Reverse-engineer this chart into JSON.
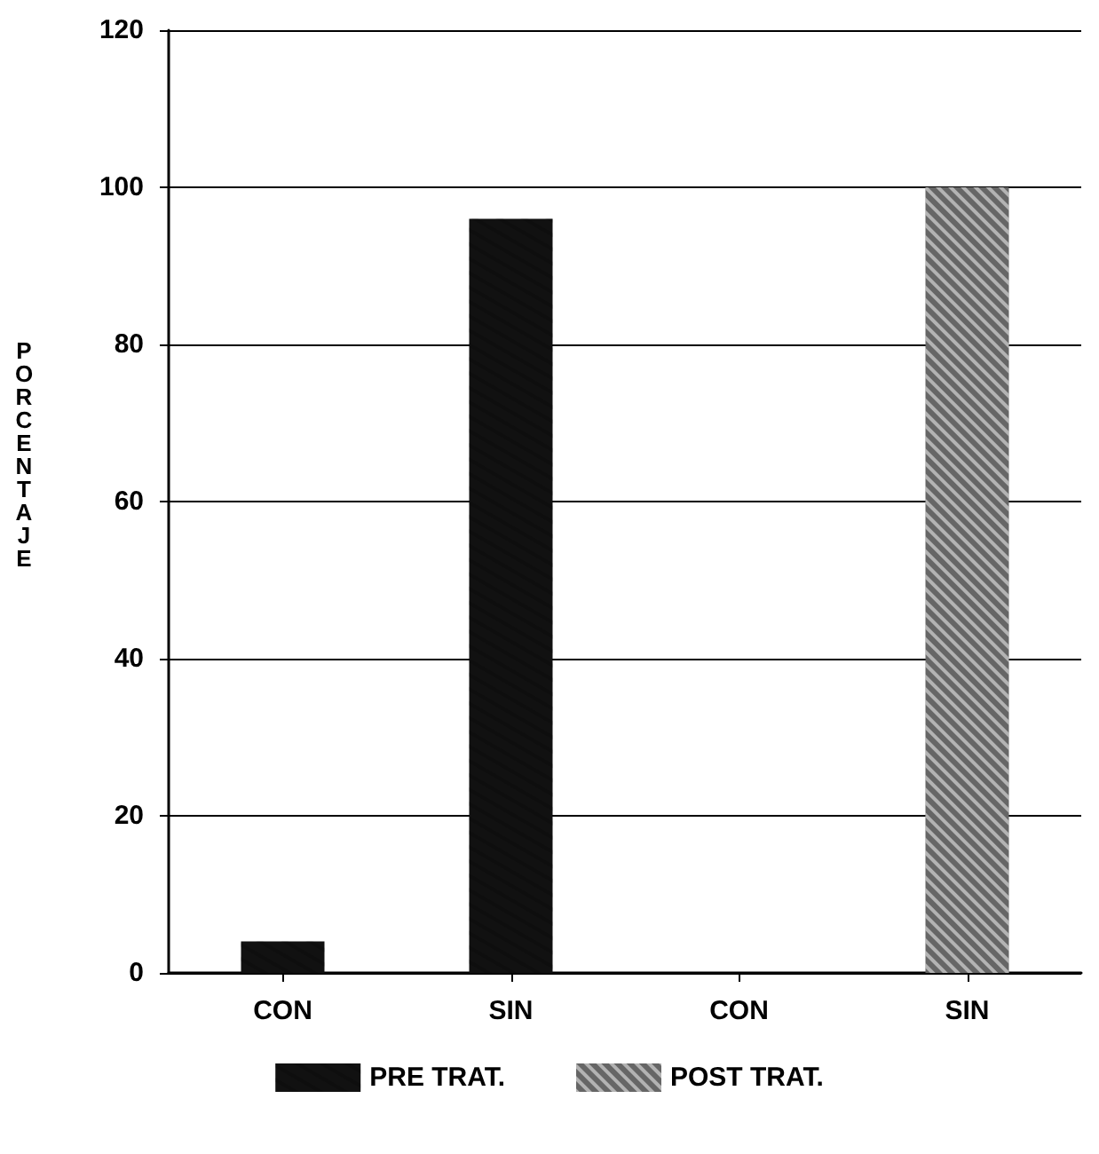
{
  "chart_data": {
    "type": "bar",
    "ylabel": "PORCENTAJE",
    "categories": [
      "CON",
      "SIN",
      "CON",
      "SIN"
    ],
    "series": [
      {
        "name": "PRE TRAT.",
        "color": "#111111",
        "values": [
          4,
          96,
          null,
          null
        ]
      },
      {
        "name": "POST TRAT.",
        "color": "#666666",
        "values": [
          null,
          null,
          0,
          100
        ]
      }
    ],
    "ylim": [
      0,
      120
    ],
    "yticks": [
      0,
      20,
      40,
      60,
      80,
      100,
      120
    ],
    "grid": "y",
    "legend": "bottom"
  }
}
